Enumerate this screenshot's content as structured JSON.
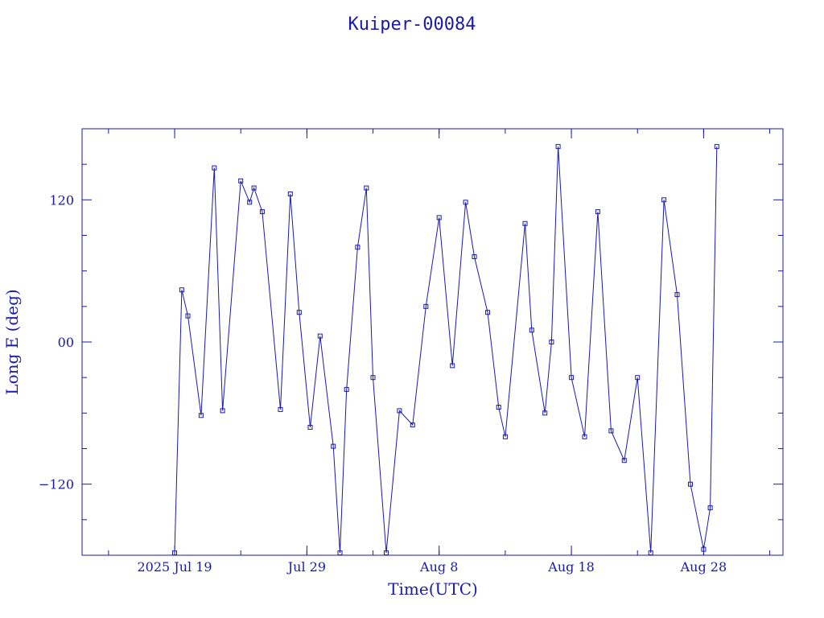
{
  "chart_data": {
    "type": "scatter",
    "title": "Kuiper-00084",
    "xlabel": "Time(UTC)",
    "ylabel": "Long E (deg)",
    "xlim": [
      "2025-07-12",
      "2025-09-03"
    ],
    "ylim": [
      -180,
      180
    ],
    "x_tick_labels": [
      {
        "date": "2025-07-19",
        "label": "2025 Jul 19"
      },
      {
        "date": "2025-07-29",
        "label": "Jul 29"
      },
      {
        "date": "2025-08-08",
        "label": "Aug  8"
      },
      {
        "date": "2025-08-18",
        "label": "Aug 18"
      },
      {
        "date": "2025-08-28",
        "label": "Aug 28"
      }
    ],
    "y_ticks": [
      {
        "value": 120,
        "label": "120"
      },
      {
        "value": 0,
        "label": "00"
      },
      {
        "value": -120,
        "label": "−120"
      }
    ],
    "grid": false,
    "color": "#1a1aa6",
    "series": [
      {
        "x": [
          "2025-07-19T00:00",
          "2025-07-19T13:00",
          "2025-07-20T00:00",
          "2025-07-21T00:00",
          "2025-07-22T00:00",
          "2025-07-22T15:00",
          "2025-07-24T00:00",
          "2025-07-24T16:00",
          "2025-07-25T00:00",
          "2025-07-25T15:00",
          "2025-07-27T00:00",
          "2025-07-27T18:00",
          "2025-07-28T10:00",
          "2025-07-29T06:00",
          "2025-07-30T00:00",
          "2025-07-31T00:00",
          "2025-07-31T12:00",
          "2025-08-01T00:00",
          "2025-08-01T20:00",
          "2025-08-02T12:00",
          "2025-08-03T00:00",
          "2025-08-04T00:00",
          "2025-08-05T00:00",
          "2025-08-06T00:00",
          "2025-08-07T00:00",
          "2025-08-08T00:00",
          "2025-08-09T00:00",
          "2025-08-10T00:00",
          "2025-08-10T16:00",
          "2025-08-11T16:00",
          "2025-08-12T12:00",
          "2025-08-13T00:00",
          "2025-08-14T12:00",
          "2025-08-15T00:00",
          "2025-08-16T00:00",
          "2025-08-16T12:00",
          "2025-08-17T00:00",
          "2025-08-18T00:00",
          "2025-08-19T00:00",
          "2025-08-20T00:00",
          "2025-08-21T00:00",
          "2025-08-22T00:00",
          "2025-08-23T00:00",
          "2025-08-24T00:00",
          "2025-08-25T00:00",
          "2025-08-26T00:00",
          "2025-08-27T00:00",
          "2025-08-28T00:00",
          "2025-08-28T12:00",
          "2025-08-29T00:00"
        ],
        "y": [
          -178,
          44,
          22,
          -62,
          147,
          -58,
          136,
          118,
          130,
          110,
          -57,
          125,
          25,
          -72,
          5,
          -88,
          -178,
          -40,
          80,
          130,
          -30,
          -178,
          -58,
          -70,
          30,
          105,
          -20,
          118,
          72,
          25,
          -55,
          -80,
          100,
          10,
          -60,
          0,
          165,
          -30,
          -80,
          110,
          -75,
          -100,
          -30,
          -178,
          120,
          40,
          -120,
          -175,
          -140,
          165
        ]
      }
    ]
  }
}
